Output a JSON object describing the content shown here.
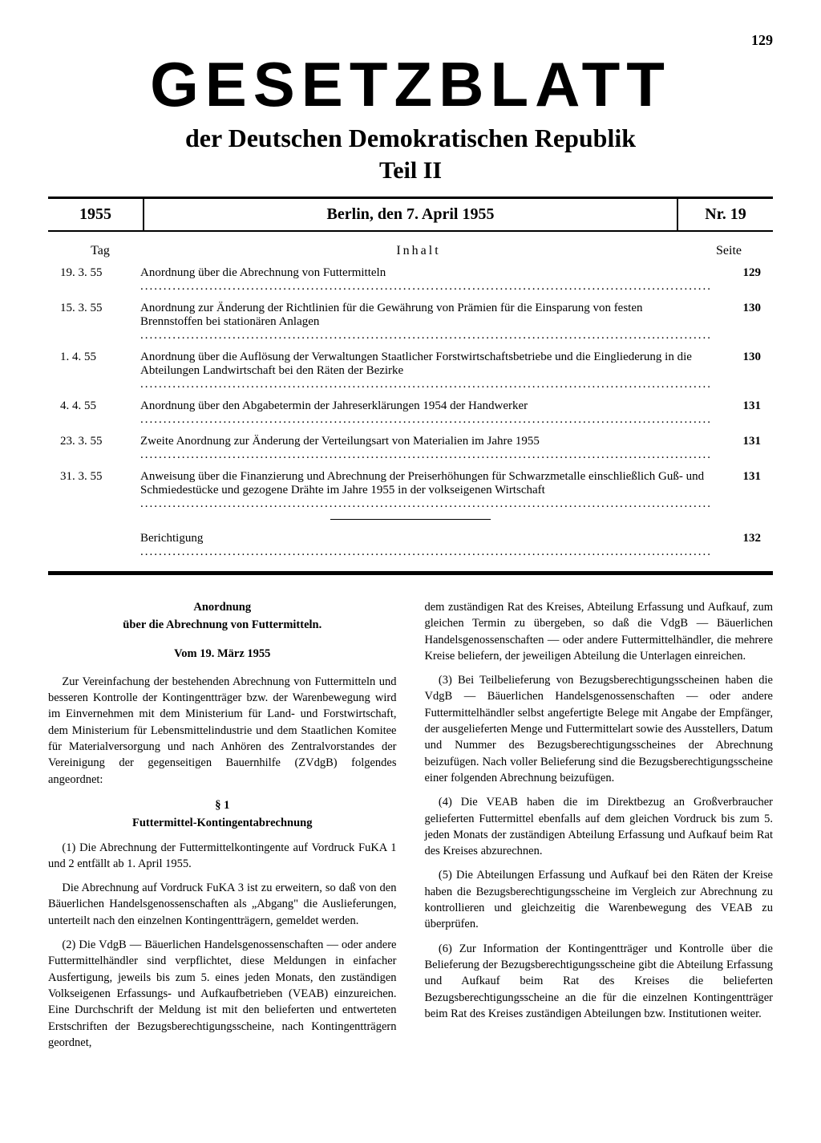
{
  "page": {
    "number": "129",
    "main_title": "GESETZBLATT",
    "subtitle": "der Deutschen Demokratischen Republik",
    "part": "Teil II"
  },
  "header": {
    "year": "1955",
    "place_date": "Berlin, den 7. April 1955",
    "issue": "Nr. 19"
  },
  "toc": {
    "col_date": "Tag",
    "col_title": "Inhalt",
    "col_page": "Seite",
    "rows": [
      {
        "date": "19. 3. 55",
        "title": "Anordnung über die Abrechnung von Futtermitteln",
        "page": "129"
      },
      {
        "date": "15. 3. 55",
        "title": "Anordnung zur Änderung der Richtlinien für die Gewährung von Prämien für die Einsparung von festen Brennstoffen bei stationären Anlagen",
        "page": "130"
      },
      {
        "date": "1. 4. 55",
        "title": "Anordnung über die Auflösung der Verwaltungen Staatlicher Forstwirtschaftsbetriebe und die Eingliederung in die Abteilungen Landwirtschaft bei den Räten der Bezirke",
        "page": "130"
      },
      {
        "date": "4. 4. 55",
        "title": "Anordnung über den Abgabetermin der Jahreserklärungen 1954 der Handwerker",
        "page": "131"
      },
      {
        "date": "23. 3. 55",
        "title": "Zweite Anordnung zur Änderung der Verteilungsart von Materialien im Jahre 1955",
        "page": "131"
      },
      {
        "date": "31. 3. 55",
        "title": "Anweisung über die Finanzierung und Abrechnung der Preiserhöhungen für Schwarzmetalle einschließlich Guß- und Schmiedestücke und gezogene Drähte im Jahre 1955 in der volkseigenen Wirtschaft",
        "page": "131"
      }
    ],
    "correction": {
      "date": "",
      "title": "Berichtigung",
      "page": "132"
    }
  },
  "ordinance": {
    "title": "Anordnung",
    "subtitle": "über die Abrechnung von Futtermitteln.",
    "date": "Vom 19. März 1955",
    "preamble": "Zur Vereinfachung der bestehenden Abrechnung von Futtermitteln und besseren Kontrolle der Kontingentträger bzw. der Warenbewegung wird im Einvernehmen mit dem Ministerium für Land- und Forstwirtschaft, dem Ministerium für Lebensmittelindustrie und dem Staatlichen Komitee für Materialversorgung und nach Anhören des Zentralvorstandes der Vereinigung der gegenseitigen Bauernhilfe (ZVdgB) folgendes angeordnet:",
    "s1_num": "§ 1",
    "s1_title": "Futtermittel-Kontingentabrechnung",
    "p1": "(1) Die Abrechnung der Futtermittelkontingente auf Vordruck FuKA 1 und 2 entfällt ab 1. April 1955.",
    "p1b": "Die Abrechnung auf Vordruck FuKA 3 ist zu erweitern, so daß von den Bäuerlichen Handelsgenossenschaften als „Abgang\" die Auslieferungen, unterteilt nach den einzelnen Kontingentträgern, gemeldet werden.",
    "p2": "(2) Die VdgB — Bäuerlichen Handelsgenossenschaften — oder andere Futtermittelhändler sind verpflichtet, diese Meldungen in einfacher Ausfertigung, jeweils bis zum 5. eines jeden Monats, den zuständigen Volkseigenen Erfassungs- und Aufkaufbetrieben (VEAB) einzureichen. Eine Durchschrift der Meldung ist mit den belieferten und entwerteten Erstschriften der Bezugsberechtigungsscheine, nach Kontingentträgern geordnet,",
    "p2_cont": "dem zuständigen Rat des Kreises, Abteilung Erfassung und Aufkauf, zum gleichen Termin zu übergeben, so daß die VdgB — Bäuerlichen Handelsgenossenschaften — oder andere Futtermittelhändler, die mehrere Kreise beliefern, der jeweiligen Abteilung die Unterlagen einreichen.",
    "p3": "(3) Bei Teilbelieferung von Bezugsberechtigungsscheinen haben die VdgB — Bäuerlichen Handelsgenossenschaften — oder andere Futtermittelhändler selbst angefertigte Belege mit Angabe der Empfänger, der ausgelieferten Menge und Futtermittelart sowie des Ausstellers, Datum und Nummer des Bezugsberechtigungsscheines der Abrechnung beizufügen. Nach voller Belieferung sind die Bezugsberechtigungsscheine einer folgenden Abrechnung beizufügen.",
    "p4": "(4) Die VEAB haben die im Direktbezug an Großverbraucher gelieferten Futtermittel ebenfalls auf dem gleichen Vordruck bis zum 5. jeden Monats der zuständigen Abteilung Erfassung und Aufkauf beim Rat des Kreises abzurechnen.",
    "p5": "(5) Die Abteilungen Erfassung und Aufkauf bei den Räten der Kreise haben die Bezugsberechtigungsscheine im Vergleich zur Abrechnung zu kontrollieren und gleichzeitig die Warenbewegung des VEAB zu überprüfen.",
    "p6": "(6) Zur Information der Kontingentträger und Kontrolle über die Belieferung der Bezugsberechtigungsscheine gibt die Abteilung Erfassung und Aufkauf beim Rat des Kreises die belieferten Bezugsberechtigungsscheine an die für die einzelnen Kontingentträger beim Rat des Kreises zuständigen Abteilungen bzw. Institutionen weiter."
  }
}
